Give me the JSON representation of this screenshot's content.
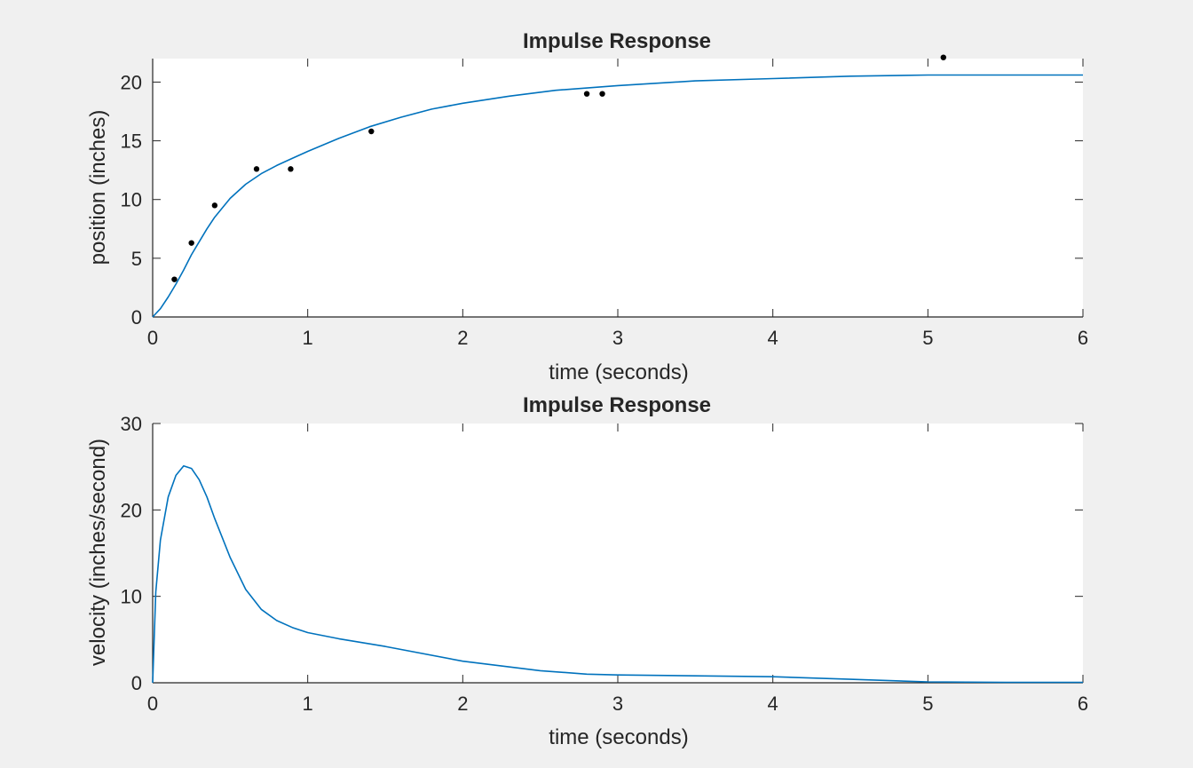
{
  "chart_data": [
    {
      "type": "line",
      "title": "Impulse Response",
      "xlabel": "time (seconds)",
      "ylabel": "position (inches)",
      "xlim": [
        0,
        6
      ],
      "ylim": [
        0,
        22
      ],
      "xticks": [
        0,
        1,
        2,
        3,
        4,
        5,
        6
      ],
      "yticks": [
        0,
        5,
        10,
        15,
        20
      ],
      "grid": false,
      "colors": {
        "line": "#0072bd",
        "markers": "#000000"
      },
      "series": [
        {
          "kind": "line",
          "x": [
            0,
            0.05,
            0.1,
            0.15,
            0.2,
            0.25,
            0.3,
            0.35,
            0.4,
            0.5,
            0.6,
            0.7,
            0.8,
            0.9,
            1.0,
            1.2,
            1.4,
            1.6,
            1.8,
            2.0,
            2.3,
            2.6,
            3.0,
            3.5,
            4.0,
            4.5,
            5.0,
            5.5,
            6.0
          ],
          "y": [
            0,
            0.7,
            1.7,
            2.8,
            4.0,
            5.3,
            6.4,
            7.5,
            8.5,
            10.1,
            11.3,
            12.2,
            12.9,
            13.5,
            14.1,
            15.2,
            16.2,
            17.0,
            17.7,
            18.2,
            18.8,
            19.3,
            19.7,
            20.1,
            20.3,
            20.5,
            20.6,
            20.6,
            20.6
          ]
        },
        {
          "kind": "scatter",
          "x": [
            0.14,
            0.25,
            0.4,
            0.67,
            0.89,
            1.41,
            2.8,
            2.9,
            5.1
          ],
          "y": [
            3.2,
            6.3,
            9.5,
            12.6,
            12.6,
            15.8,
            19.0,
            19.0,
            22.1
          ]
        }
      ]
    },
    {
      "type": "line",
      "title": "Impulse Response",
      "xlabel": "time (seconds)",
      "ylabel": "velocity (inches/second)",
      "xlim": [
        0,
        6
      ],
      "ylim": [
        0,
        30
      ],
      "xticks": [
        0,
        1,
        2,
        3,
        4,
        5,
        6
      ],
      "yticks": [
        0,
        10,
        20,
        30
      ],
      "grid": false,
      "colors": {
        "line": "#0072bd"
      },
      "series": [
        {
          "kind": "line",
          "x": [
            0,
            0.02,
            0.05,
            0.1,
            0.15,
            0.2,
            0.25,
            0.3,
            0.35,
            0.4,
            0.5,
            0.6,
            0.7,
            0.8,
            0.9,
            1.0,
            1.2,
            1.5,
            2.0,
            2.5,
            2.8,
            3.0,
            3.5,
            4.0,
            4.5,
            5.0,
            5.5,
            6.0
          ],
          "y": [
            0,
            10.5,
            16.5,
            21.5,
            24.0,
            25.1,
            24.8,
            23.5,
            21.5,
            19.0,
            14.5,
            10.8,
            8.5,
            7.2,
            6.4,
            5.8,
            5.1,
            4.2,
            2.5,
            1.4,
            1.0,
            0.9,
            0.8,
            0.7,
            0.4,
            0.1,
            0.05,
            0.05
          ]
        }
      ]
    }
  ]
}
